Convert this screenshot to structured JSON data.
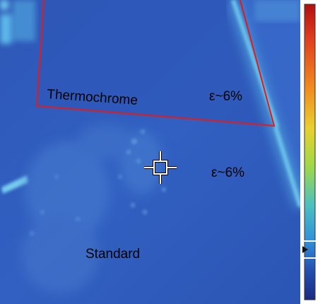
{
  "image": {
    "kind": "thermal-infrared-photo",
    "palette": "iron/rainbow (dark blue low → red high)",
    "colors": {
      "background_blue": "#2a4fae",
      "mid_blue": "#3563c6",
      "highlight_cyan": "#66c6ee",
      "region_outline": "#e01c1c",
      "label_text": "#000000",
      "crosshair": "#ffffff"
    }
  },
  "labels": {
    "region_top": "Thermochrome",
    "emissivity_top": "ε~6%",
    "emissivity_mid": "ε~6%",
    "region_bottom": "Standard"
  },
  "color_scale": {
    "orientation": "vertical",
    "stops": [
      "#b01010",
      "#e04020",
      "#f08a20",
      "#e8d030",
      "#9ed84a",
      "#4cc0c0",
      "#3090d8",
      "#2450b0",
      "#1a2a80"
    ],
    "marker_level": 0.18,
    "marker_icon": "triangle-pointer-icon"
  },
  "crosshair": {
    "icon": "crosshair-spot-icon"
  }
}
